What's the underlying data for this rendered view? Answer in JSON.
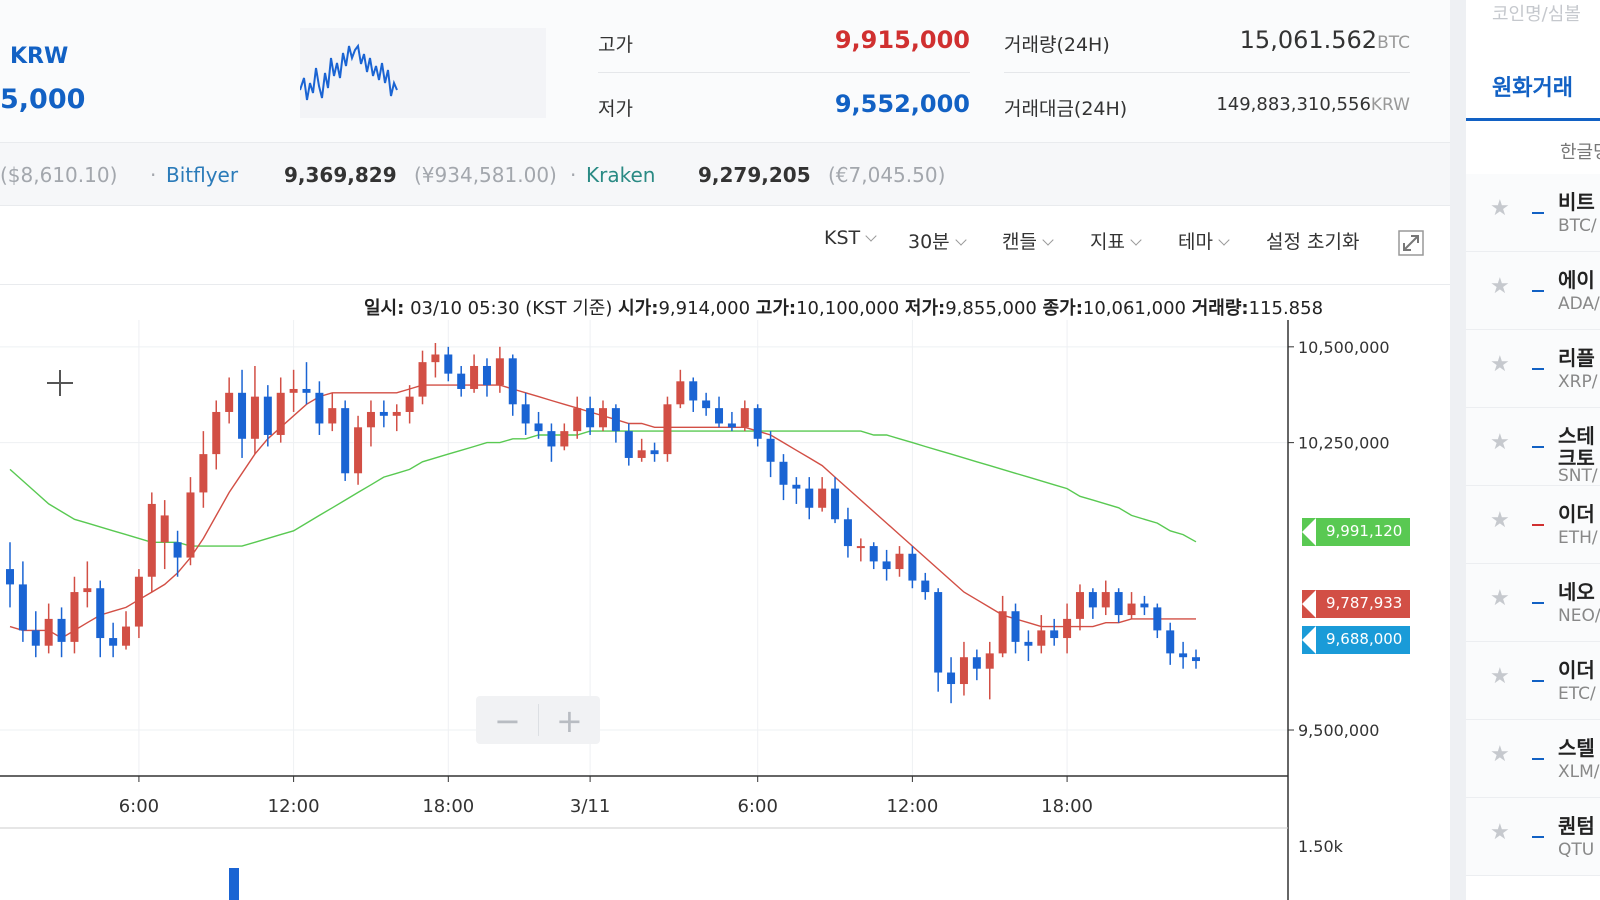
{
  "header": {
    "market_unit": "KRW",
    "current_price": "5,000",
    "high_label": "고가",
    "high_value": "9,915,000",
    "low_label": "저가",
    "low_value": "9,552,000",
    "volume_label": "거래량(24H)",
    "volume_value": "15,061.562",
    "volume_unit": "BTC",
    "amount_label": "거래대금(24H)",
    "amount_value": "149,883,310,556",
    "amount_unit": "KRW"
  },
  "exchanges": {
    "first_foreign": "($8,610.10)",
    "bitflyer_name": "Bitflyer",
    "bitflyer_value": "9,369,829",
    "bitflyer_foreign": "(¥934,581.00)",
    "kraken_name": "Kraken",
    "kraken_value": "9,279,205",
    "kraken_foreign": "(€7,045.50)"
  },
  "toolbar": {
    "timezone": "KST",
    "interval": "30분",
    "chart_type": "캔들",
    "indicator": "지표",
    "theme": "테마",
    "reset": "설정 초기화"
  },
  "info": {
    "date_label": "일시:",
    "date_value": "03/10 05:30 (KST 기준)",
    "open_label": "시가:",
    "open_value": "9,914,000",
    "high_label": "고가:",
    "high_value": "10,100,000",
    "low_label": "저가:",
    "low_value": "9,855,000",
    "close_label": "종가:",
    "close_value": "10,061,000",
    "vol_label": "거래량:",
    "vol_value": "115.858"
  },
  "price_tags": {
    "green": "9,991,120",
    "red": "9,787,933",
    "blue": "9,688,000"
  },
  "zoom": {
    "minus": "−",
    "plus": "+"
  },
  "chart_data": {
    "type": "candlestick",
    "y_ticks": [
      "10,500,000",
      "10,250,000",
      "9,500,000"
    ],
    "y_tick_values": [
      10500000,
      10250000,
      9500000
    ],
    "ylim": [
      9380000,
      10570000
    ],
    "x_ticks": [
      "6:00",
      "12:00",
      "18:00",
      "3/11",
      "6:00",
      "12:00",
      "18:00"
    ],
    "x_tick_index": [
      10,
      22,
      34,
      45,
      58,
      70,
      82
    ],
    "volume_ticks": [
      "1.50k"
    ],
    "candles": [
      [
        9920000,
        9880000,
        9990000,
        9820000
      ],
      [
        9880000,
        9760000,
        9940000,
        9730000
      ],
      [
        9760000,
        9720000,
        9810000,
        9690000
      ],
      [
        9720000,
        9790000,
        9830000,
        9700000
      ],
      [
        9790000,
        9730000,
        9820000,
        9690000
      ],
      [
        9730000,
        9860000,
        9900000,
        9700000
      ],
      [
        9860000,
        9870000,
        9940000,
        9820000
      ],
      [
        9870000,
        9740000,
        9890000,
        9690000
      ],
      [
        9740000,
        9720000,
        9780000,
        9690000
      ],
      [
        9720000,
        9770000,
        9810000,
        9710000
      ],
      [
        9770000,
        9900000,
        9920000,
        9740000
      ],
      [
        9900000,
        10090000,
        10120000,
        9860000
      ],
      [
        9990000,
        10060000,
        10100000,
        9920000
      ],
      [
        9990000,
        9950000,
        10020000,
        9900000
      ],
      [
        9950000,
        10120000,
        10160000,
        9930000
      ],
      [
        10120000,
        10220000,
        10280000,
        10080000
      ],
      [
        10220000,
        10330000,
        10360000,
        10180000
      ],
      [
        10330000,
        10380000,
        10420000,
        10300000
      ],
      [
        10380000,
        10260000,
        10440000,
        10210000
      ],
      [
        10260000,
        10370000,
        10450000,
        10220000
      ],
      [
        10370000,
        10270000,
        10400000,
        10240000
      ],
      [
        10270000,
        10380000,
        10420000,
        10250000
      ],
      [
        10380000,
        10390000,
        10440000,
        10330000
      ],
      [
        10390000,
        10380000,
        10460000,
        10350000
      ],
      [
        10380000,
        10300000,
        10410000,
        10270000
      ],
      [
        10300000,
        10340000,
        10380000,
        10280000
      ],
      [
        10340000,
        10170000,
        10360000,
        10150000
      ],
      [
        10170000,
        10290000,
        10320000,
        10140000
      ],
      [
        10290000,
        10330000,
        10360000,
        10240000
      ],
      [
        10330000,
        10320000,
        10360000,
        10290000
      ],
      [
        10320000,
        10330000,
        10350000,
        10280000
      ],
      [
        10330000,
        10370000,
        10400000,
        10300000
      ],
      [
        10370000,
        10460000,
        10490000,
        10350000
      ],
      [
        10460000,
        10480000,
        10510000,
        10420000
      ],
      [
        10480000,
        10430000,
        10500000,
        10410000
      ],
      [
        10430000,
        10390000,
        10450000,
        10370000
      ],
      [
        10390000,
        10450000,
        10480000,
        10380000
      ],
      [
        10450000,
        10400000,
        10470000,
        10370000
      ],
      [
        10400000,
        10470000,
        10500000,
        10380000
      ],
      [
        10470000,
        10350000,
        10480000,
        10320000
      ],
      [
        10350000,
        10300000,
        10380000,
        10270000
      ],
      [
        10300000,
        10280000,
        10330000,
        10260000
      ],
      [
        10280000,
        10240000,
        10300000,
        10200000
      ],
      [
        10240000,
        10280000,
        10300000,
        10230000
      ],
      [
        10280000,
        10340000,
        10370000,
        10260000
      ],
      [
        10340000,
        10290000,
        10370000,
        10270000
      ],
      [
        10290000,
        10340000,
        10360000,
        10280000
      ],
      [
        10340000,
        10280000,
        10350000,
        10250000
      ],
      [
        10280000,
        10210000,
        10300000,
        10190000
      ],
      [
        10210000,
        10230000,
        10260000,
        10200000
      ],
      [
        10230000,
        10220000,
        10250000,
        10200000
      ],
      [
        10220000,
        10350000,
        10370000,
        10200000
      ],
      [
        10350000,
        10410000,
        10440000,
        10340000
      ],
      [
        10410000,
        10360000,
        10420000,
        10330000
      ],
      [
        10360000,
        10340000,
        10380000,
        10320000
      ],
      [
        10340000,
        10300000,
        10370000,
        10290000
      ],
      [
        10300000,
        10290000,
        10330000,
        10280000
      ],
      [
        10290000,
        10340000,
        10360000,
        10280000
      ],
      [
        10340000,
        10260000,
        10350000,
        10240000
      ],
      [
        10260000,
        10200000,
        10280000,
        10160000
      ],
      [
        10200000,
        10140000,
        10220000,
        10100000
      ],
      [
        10140000,
        10130000,
        10160000,
        10090000
      ],
      [
        10130000,
        10080000,
        10160000,
        10050000
      ],
      [
        10080000,
        10130000,
        10160000,
        10070000
      ],
      [
        10130000,
        10050000,
        10160000,
        10040000
      ],
      [
        10050000,
        9980000,
        10080000,
        9950000
      ],
      [
        9980000,
        9980000,
        10000000,
        9940000
      ],
      [
        9980000,
        9940000,
        9990000,
        9920000
      ],
      [
        9940000,
        9920000,
        9970000,
        9890000
      ],
      [
        9920000,
        9960000,
        9980000,
        9900000
      ],
      [
        9960000,
        9890000,
        9980000,
        9870000
      ],
      [
        9890000,
        9860000,
        9910000,
        9840000
      ],
      [
        9860000,
        9650000,
        9870000,
        9600000
      ],
      [
        9650000,
        9620000,
        9690000,
        9570000
      ],
      [
        9620000,
        9690000,
        9730000,
        9590000
      ],
      [
        9690000,
        9660000,
        9710000,
        9630000
      ],
      [
        9660000,
        9700000,
        9730000,
        9580000
      ],
      [
        9700000,
        9810000,
        9850000,
        9690000
      ],
      [
        9810000,
        9730000,
        9830000,
        9700000
      ],
      [
        9730000,
        9720000,
        9760000,
        9680000
      ],
      [
        9720000,
        9760000,
        9800000,
        9700000
      ],
      [
        9760000,
        9740000,
        9790000,
        9720000
      ],
      [
        9740000,
        9790000,
        9830000,
        9700000
      ],
      [
        9790000,
        9860000,
        9880000,
        9760000
      ],
      [
        9860000,
        9820000,
        9870000,
        9790000
      ],
      [
        9820000,
        9860000,
        9890000,
        9800000
      ],
      [
        9860000,
        9800000,
        9870000,
        9780000
      ],
      [
        9800000,
        9830000,
        9860000,
        9790000
      ],
      [
        9830000,
        9820000,
        9850000,
        9800000
      ],
      [
        9820000,
        9760000,
        9830000,
        9740000
      ],
      [
        9760000,
        9700000,
        9780000,
        9670000
      ],
      [
        9700000,
        9690000,
        9730000,
        9660000
      ],
      [
        9690000,
        9680000,
        9710000,
        9660000
      ]
    ],
    "ma_red": [
      9770000,
      9760000,
      9760000,
      9760000,
      9740000,
      9760000,
      9780000,
      9800000,
      9810000,
      9820000,
      9840000,
      9860000,
      9880000,
      9910000,
      9950000,
      10000000,
      10060000,
      10120000,
      10170000,
      10220000,
      10260000,
      10290000,
      10320000,
      10350000,
      10370000,
      10380000,
      10380000,
      10380000,
      10380000,
      10380000,
      10380000,
      10390000,
      10400000,
      10400000,
      10400000,
      10400000,
      10400000,
      10400000,
      10400000,
      10390000,
      10380000,
      10370000,
      10360000,
      10350000,
      10340000,
      10330000,
      10320000,
      10310000,
      10300000,
      10300000,
      10290000,
      10290000,
      10290000,
      10290000,
      10290000,
      10290000,
      10290000,
      10290000,
      10280000,
      10270000,
      10250000,
      10230000,
      10210000,
      10190000,
      10160000,
      10130000,
      10100000,
      10070000,
      10040000,
      10010000,
      9980000,
      9950000,
      9920000,
      9890000,
      9860000,
      9840000,
      9820000,
      9800000,
      9790000,
      9780000,
      9770000,
      9770000,
      9770000,
      9770000,
      9770000,
      9780000,
      9780000,
      9790000,
      9790000,
      9790000,
      9790000,
      9790000,
      9790000
    ],
    "ma_green": [
      10180000,
      10150000,
      10120000,
      10090000,
      10070000,
      10050000,
      10040000,
      10030000,
      10020000,
      10010000,
      10000000,
      9990000,
      9990000,
      9990000,
      9980000,
      9980000,
      9980000,
      9980000,
      9980000,
      9990000,
      10000000,
      10010000,
      10020000,
      10040000,
      10060000,
      10080000,
      10100000,
      10120000,
      10140000,
      10160000,
      10170000,
      10180000,
      10200000,
      10210000,
      10220000,
      10230000,
      10240000,
      10250000,
      10250000,
      10260000,
      10260000,
      10270000,
      10270000,
      10270000,
      10270000,
      10280000,
      10280000,
      10280000,
      10280000,
      10280000,
      10280000,
      10280000,
      10280000,
      10280000,
      10280000,
      10280000,
      10280000,
      10280000,
      10280000,
      10280000,
      10280000,
      10280000,
      10280000,
      10280000,
      10280000,
      10280000,
      10280000,
      10270000,
      10270000,
      10260000,
      10250000,
      10240000,
      10230000,
      10220000,
      10210000,
      10200000,
      10190000,
      10180000,
      10170000,
      10160000,
      10150000,
      10140000,
      10130000,
      10110000,
      10100000,
      10090000,
      10080000,
      10060000,
      10050000,
      10040000,
      10020000,
      10010000,
      9991120
    ]
  },
  "sidebar": {
    "search_hint": "코인명/심볼",
    "tab_krw": "원화거래",
    "sort_label": "한글명",
    "coins": [
      {
        "name": "비트",
        "symbol": "BTC/",
        "dash_color": "#1261c4"
      },
      {
        "name": "에이",
        "symbol": "ADA/",
        "dash_color": "#1261c4"
      },
      {
        "name": "리플",
        "symbol": "XRP/",
        "dash_color": "#1261c4"
      },
      {
        "name": "스테",
        "name2": "크토",
        "symbol": "SNT/",
        "dash_color": "#1261c4"
      },
      {
        "name": "이더",
        "symbol": "ETH/",
        "dash_color": "#d03030"
      },
      {
        "name": "네오",
        "symbol": "NEO/",
        "dash_color": "#1261c4"
      },
      {
        "name": "이더",
        "symbol": "ETC/",
        "dash_color": "#1261c4"
      },
      {
        "name": "스텔",
        "symbol": "XLM/",
        "dash_color": "#1261c4"
      },
      {
        "name": "퀀텀",
        "symbol": "QTU",
        "dash_color": "#1261c4"
      }
    ]
  },
  "colors": {
    "up": "#d24f45",
    "down": "#1a64d3",
    "ma_red": "#d24f45",
    "ma_green": "#59c952",
    "accent": "#1261c4"
  }
}
